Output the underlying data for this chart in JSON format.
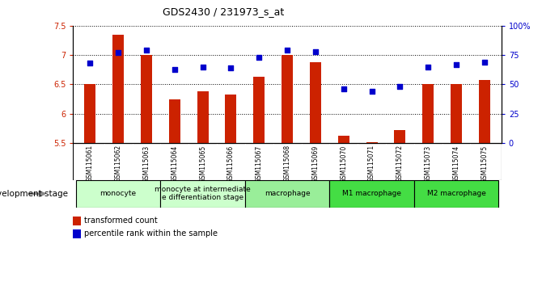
{
  "title": "GDS2430 / 231973_s_at",
  "samples": [
    "GSM115061",
    "GSM115062",
    "GSM115063",
    "GSM115064",
    "GSM115065",
    "GSM115066",
    "GSM115067",
    "GSM115068",
    "GSM115069",
    "GSM115070",
    "GSM115071",
    "GSM115072",
    "GSM115073",
    "GSM115074",
    "GSM115075"
  ],
  "bar_values": [
    6.5,
    7.35,
    7.0,
    6.25,
    6.38,
    6.32,
    6.63,
    7.0,
    6.88,
    5.63,
    5.52,
    5.72,
    6.5,
    6.5,
    6.58
  ],
  "dot_values": [
    68,
    77,
    79,
    63,
    65,
    64,
    73,
    79,
    78,
    46,
    44,
    48,
    65,
    67,
    69
  ],
  "ylim": [
    5.5,
    7.5
  ],
  "yticks": [
    5.5,
    6.0,
    6.5,
    7.0,
    7.5
  ],
  "right_yticks": [
    0,
    25,
    50,
    75,
    100
  ],
  "bar_color": "#cc2200",
  "dot_color": "#0000cc",
  "grid_color": "#000000",
  "groups": [
    {
      "label": "monocyte",
      "start": 0,
      "end": 2,
      "color": "#ccffcc"
    },
    {
      "label": "monocyte at intermediate\ne differentiation stage",
      "start": 3,
      "end": 5,
      "color": "#ccffcc"
    },
    {
      "label": "macrophage",
      "start": 6,
      "end": 8,
      "color": "#99ee99"
    },
    {
      "label": "M1 macrophage",
      "start": 9,
      "end": 11,
      "color": "#44dd44"
    },
    {
      "label": "M2 macrophage",
      "start": 12,
      "end": 14,
      "color": "#44dd44"
    }
  ],
  "legend_bar_label": "transformed count",
  "legend_dot_label": "percentile rank within the sample",
  "dev_stage_label": "development stage",
  "xlabel_bg": "#cccccc",
  "title_fontsize": 9,
  "tick_fontsize": 7,
  "stage_fontsize": 6.5,
  "legend_fontsize": 7
}
